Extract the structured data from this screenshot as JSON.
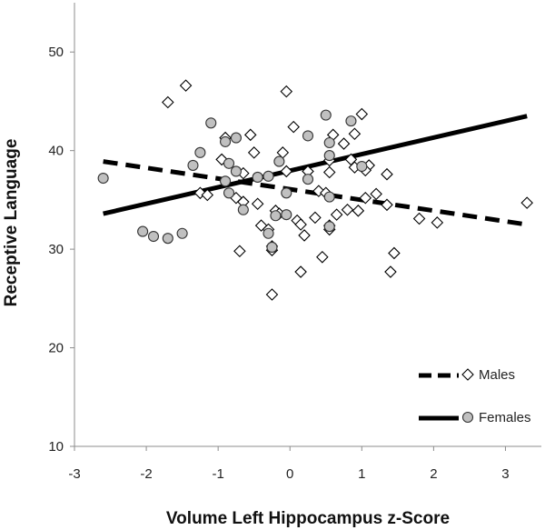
{
  "chart_data": {
    "type": "scatter",
    "xlabel": "Volume Left Hippocampus z-Score",
    "ylabel": "Receptive Language",
    "xlim": [
      -3,
      3.5
    ],
    "ylim": [
      10,
      55
    ],
    "xticks": [
      "-3",
      "-2",
      "-1",
      "0",
      "1",
      "2",
      "3"
    ],
    "yticks": [
      "10",
      "20",
      "30",
      "40",
      "50"
    ],
    "grid": false,
    "legend_position": "bottom-right",
    "series": [
      {
        "name": "Males",
        "marker": "diamond",
        "marker_color": "#ffffff",
        "trend_style": "dashed",
        "trendline": [
          [
            -2.6,
            38.9
          ],
          [
            3.3,
            32.5
          ]
        ],
        "points": [
          [
            -1.7,
            44.9
          ],
          [
            -1.45,
            46.6
          ],
          [
            -0.05,
            46.0
          ],
          [
            -0.1,
            39.8
          ],
          [
            0.05,
            42.4
          ],
          [
            1.0,
            43.7
          ],
          [
            0.9,
            41.7
          ],
          [
            0.75,
            40.7
          ],
          [
            0.6,
            41.6
          ],
          [
            -0.9,
            41.3
          ],
          [
            -0.95,
            39.1
          ],
          [
            -0.55,
            41.6
          ],
          [
            -0.5,
            39.8
          ],
          [
            -0.65,
            37.7
          ],
          [
            -0.05,
            37.9
          ],
          [
            0.25,
            37.9
          ],
          [
            0.55,
            37.8
          ],
          [
            0.55,
            39.0
          ],
          [
            0.85,
            39.1
          ],
          [
            0.9,
            38.3
          ],
          [
            1.1,
            38.5
          ],
          [
            1.35,
            37.6
          ],
          [
            1.05,
            38.0
          ],
          [
            -1.25,
            35.7
          ],
          [
            -1.15,
            35.5
          ],
          [
            -0.75,
            35.2
          ],
          [
            -0.65,
            34.8
          ],
          [
            -0.45,
            34.6
          ],
          [
            -0.2,
            33.9
          ],
          [
            -0.15,
            33.6
          ],
          [
            0.1,
            32.9
          ],
          [
            0.15,
            32.5
          ],
          [
            0.4,
            35.9
          ],
          [
            0.5,
            35.7
          ],
          [
            0.65,
            33.5
          ],
          [
            0.8,
            34.0
          ],
          [
            0.95,
            33.9
          ],
          [
            1.05,
            35.2
          ],
          [
            1.2,
            35.6
          ],
          [
            1.35,
            34.5
          ],
          [
            1.8,
            33.1
          ],
          [
            2.05,
            32.7
          ],
          [
            -0.4,
            32.4
          ],
          [
            -0.3,
            32.0
          ],
          [
            -0.25,
            30.3
          ],
          [
            -0.25,
            29.9
          ],
          [
            0.2,
            31.4
          ],
          [
            0.15,
            27.7
          ],
          [
            0.35,
            33.2
          ],
          [
            0.55,
            32.4
          ],
          [
            0.55,
            32.0
          ],
          [
            0.45,
            29.2
          ],
          [
            -0.7,
            29.8
          ],
          [
            1.4,
            27.7
          ],
          [
            1.45,
            29.6
          ],
          [
            -0.25,
            25.4
          ],
          [
            3.3,
            34.7
          ]
        ]
      },
      {
        "name": "Females",
        "marker": "circle",
        "marker_color": "#c0c0c0",
        "trend_style": "solid",
        "trendline": [
          [
            -2.6,
            33.6
          ],
          [
            3.3,
            43.5
          ]
        ],
        "points": [
          [
            -2.6,
            37.2
          ],
          [
            -2.05,
            31.8
          ],
          [
            -1.9,
            31.3
          ],
          [
            -1.7,
            31.1
          ],
          [
            -1.5,
            31.6
          ],
          [
            -1.35,
            38.5
          ],
          [
            -1.25,
            39.8
          ],
          [
            -1.1,
            42.8
          ],
          [
            -0.9,
            40.9
          ],
          [
            -0.85,
            38.7
          ],
          [
            -0.75,
            41.3
          ],
          [
            -0.75,
            37.9
          ],
          [
            -0.9,
            36.9
          ],
          [
            -0.85,
            35.7
          ],
          [
            -0.65,
            34.0
          ],
          [
            -0.45,
            37.3
          ],
          [
            -0.3,
            37.4
          ],
          [
            -0.3,
            31.6
          ],
          [
            -0.2,
            33.4
          ],
          [
            -0.05,
            35.7
          ],
          [
            -0.05,
            33.5
          ],
          [
            -0.15,
            38.9
          ],
          [
            0.25,
            41.5
          ],
          [
            0.25,
            37.1
          ],
          [
            0.5,
            43.6
          ],
          [
            0.55,
            40.8
          ],
          [
            0.55,
            39.5
          ],
          [
            0.55,
            35.3
          ],
          [
            0.55,
            32.3
          ],
          [
            0.85,
            43.0
          ],
          [
            1.0,
            38.4
          ],
          [
            -0.25,
            30.2
          ]
        ]
      }
    ]
  }
}
